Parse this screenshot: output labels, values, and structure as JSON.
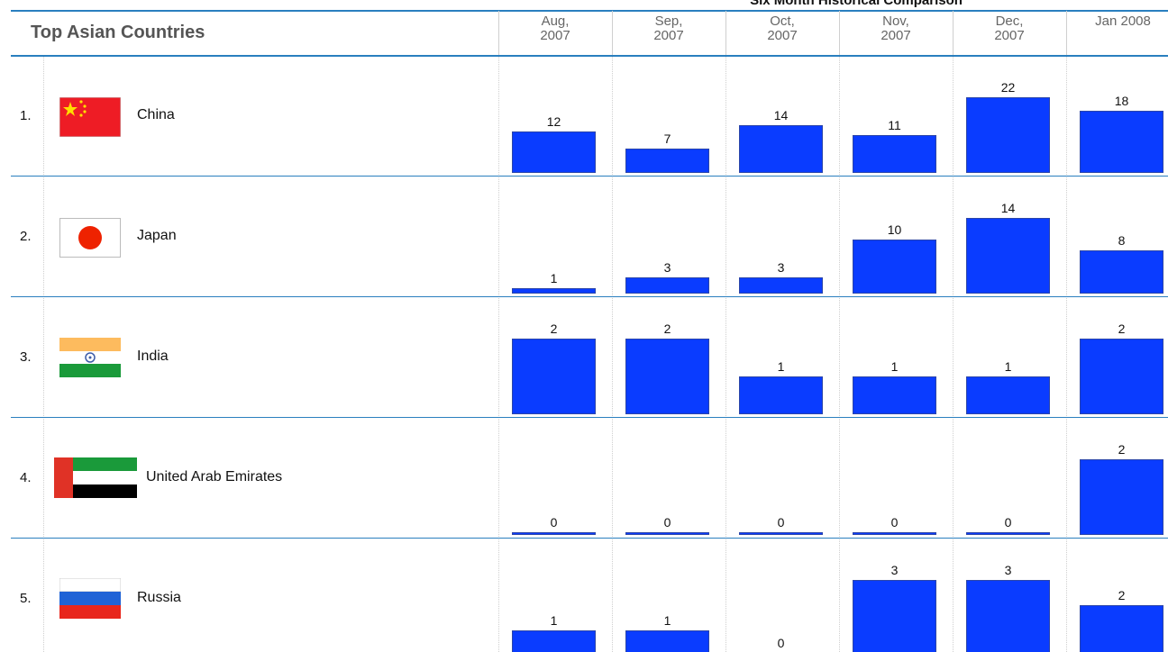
{
  "caption": "Six Month Historical Comparison",
  "table": {
    "title": "Top Asian Countries",
    "months": [
      "Aug,\n2007",
      "Sep,\n2007",
      "Oct,\n2007",
      "Nov,\n2007",
      "Dec,\n2007",
      "Jan 2008"
    ],
    "rows": [
      {
        "rank": "1.",
        "country": "China",
        "values": [
          12,
          7,
          14,
          11,
          22,
          18
        ]
      },
      {
        "rank": "2.",
        "country": "Japan",
        "values": [
          1,
          3,
          3,
          10,
          14,
          8
        ]
      },
      {
        "rank": "3.",
        "country": "India",
        "values": [
          2,
          2,
          1,
          1,
          1,
          2
        ]
      },
      {
        "rank": "4.",
        "country": "United Arab Emirates",
        "values": [
          0,
          0,
          0,
          0,
          0,
          2
        ]
      },
      {
        "rank": "5.",
        "country": "Russia",
        "values": [
          1,
          1,
          0,
          3,
          3,
          2
        ]
      }
    ]
  }
}
